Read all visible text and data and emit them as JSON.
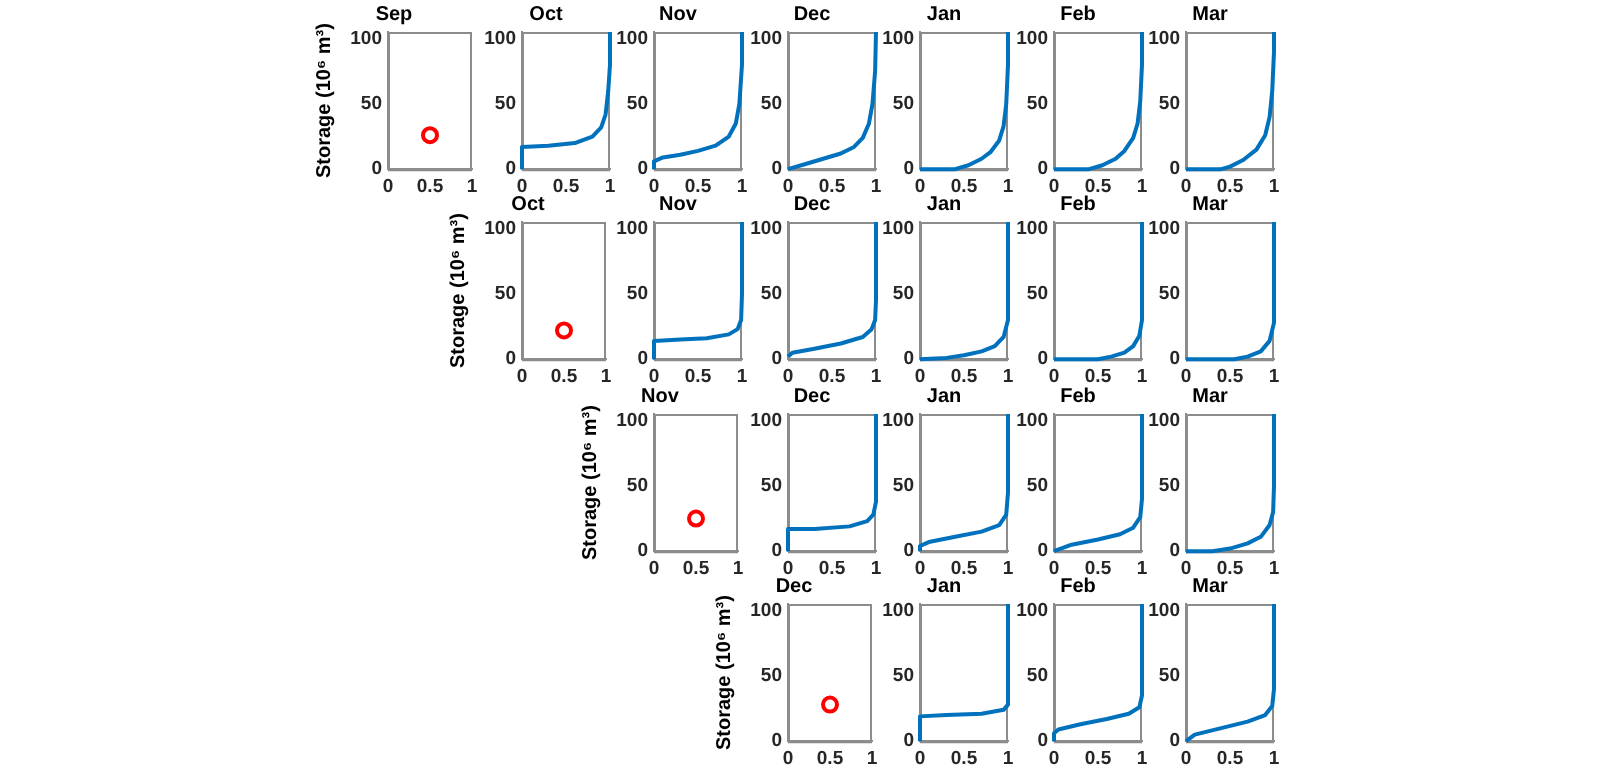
{
  "chart_data": [
    {
      "type": "scatter",
      "title": "Sep",
      "ylabel": "Storage (10⁶ m³)",
      "marker": "circle",
      "xlim": [
        0,
        1
      ],
      "xticks": [
        0,
        0.5,
        1
      ],
      "ylim": [
        0,
        105
      ],
      "yticks": [
        0,
        50,
        100
      ],
      "series": [
        {
          "color": "#ff0000",
          "x": [
            0.5
          ],
          "values": [
            26
          ]
        }
      ]
    },
    {
      "type": "line",
      "title": "Oct",
      "xlim": [
        0,
        1
      ],
      "xticks": [
        0,
        0.5,
        1
      ],
      "ylim": [
        0,
        105
      ],
      "yticks": [
        0,
        50,
        100
      ],
      "series": [
        {
          "color": "#0072bd",
          "x": [
            0,
            0,
            0.3,
            0.6,
            0.8,
            0.9,
            0.95,
            0.98,
            1,
            1
          ],
          "values": [
            0,
            17,
            18,
            20,
            25,
            32,
            42,
            60,
            80,
            105
          ]
        }
      ]
    },
    {
      "type": "line",
      "title": "Nov",
      "xlim": [
        0,
        1
      ],
      "xticks": [
        0,
        0.5,
        1
      ],
      "ylim": [
        0,
        105
      ],
      "yticks": [
        0,
        50,
        100
      ],
      "series": [
        {
          "color": "#0072bd",
          "x": [
            0,
            0,
            0.1,
            0.3,
            0.5,
            0.7,
            0.85,
            0.93,
            0.97,
            1,
            1
          ],
          "values": [
            0,
            6,
            9,
            11,
            14,
            18,
            25,
            35,
            50,
            80,
            105
          ]
        }
      ]
    },
    {
      "type": "line",
      "title": "Dec",
      "xlim": [
        0,
        1
      ],
      "xticks": [
        0,
        0.5,
        1
      ],
      "ylim": [
        0,
        105
      ],
      "yticks": [
        0,
        50,
        100
      ],
      "series": [
        {
          "color": "#0072bd",
          "x": [
            0,
            0.2,
            0.4,
            0.6,
            0.75,
            0.85,
            0.92,
            0.96,
            0.99,
            1
          ],
          "values": [
            0,
            4,
            8,
            12,
            17,
            24,
            35,
            50,
            75,
            105
          ]
        }
      ]
    },
    {
      "type": "line",
      "title": "Jan",
      "xlim": [
        0,
        1
      ],
      "xticks": [
        0,
        0.5,
        1
      ],
      "ylim": [
        0,
        105
      ],
      "yticks": [
        0,
        50,
        100
      ],
      "series": [
        {
          "color": "#0072bd",
          "x": [
            0,
            0.4,
            0.55,
            0.7,
            0.8,
            0.9,
            0.95,
            0.98,
            1,
            1
          ],
          "values": [
            0,
            0,
            3,
            8,
            13,
            22,
            33,
            50,
            80,
            105
          ]
        }
      ]
    },
    {
      "type": "line",
      "title": "Feb",
      "xlim": [
        0,
        1
      ],
      "xticks": [
        0,
        0.5,
        1
      ],
      "ylim": [
        0,
        105
      ],
      "yticks": [
        0,
        50,
        100
      ],
      "series": [
        {
          "color": "#0072bd",
          "x": [
            0,
            0.4,
            0.55,
            0.7,
            0.8,
            0.9,
            0.95,
            0.98,
            1,
            1
          ],
          "values": [
            0,
            0,
            3,
            8,
            14,
            24,
            35,
            52,
            80,
            105
          ]
        }
      ]
    },
    {
      "type": "line",
      "title": "Mar",
      "xlim": [
        0,
        1
      ],
      "xticks": [
        0,
        0.5,
        1
      ],
      "ylim": [
        0,
        105
      ],
      "yticks": [
        0,
        50,
        100
      ],
      "series": [
        {
          "color": "#0072bd",
          "x": [
            0,
            0.4,
            0.5,
            0.65,
            0.8,
            0.9,
            0.95,
            0.98,
            1,
            1
          ],
          "values": [
            0,
            0,
            2,
            7,
            15,
            26,
            40,
            60,
            90,
            105
          ]
        }
      ]
    },
    {
      "type": "scatter",
      "title": "Oct",
      "ylabel": "Storage (10⁶ m³)",
      "marker": "circle",
      "xlim": [
        0,
        1
      ],
      "xticks": [
        0,
        0.5,
        1
      ],
      "ylim": [
        0,
        105
      ],
      "yticks": [
        0,
        50,
        100
      ],
      "series": [
        {
          "color": "#ff0000",
          "x": [
            0.5
          ],
          "values": [
            22
          ]
        }
      ]
    },
    {
      "type": "line",
      "title": "Nov",
      "xlim": [
        0,
        1
      ],
      "xticks": [
        0,
        0.5,
        1
      ],
      "ylim": [
        0,
        105
      ],
      "yticks": [
        0,
        50,
        100
      ],
      "series": [
        {
          "color": "#0072bd",
          "x": [
            0,
            0,
            0.3,
            0.6,
            0.85,
            0.95,
            0.99,
            1,
            1
          ],
          "values": [
            0,
            14,
            15,
            16,
            19,
            23,
            30,
            50,
            105
          ]
        }
      ]
    },
    {
      "type": "line",
      "title": "Dec",
      "xlim": [
        0,
        1
      ],
      "xticks": [
        0,
        0.5,
        1
      ],
      "ylim": [
        0,
        105
      ],
      "yticks": [
        0,
        50,
        100
      ],
      "series": [
        {
          "color": "#0072bd",
          "x": [
            0,
            0.05,
            0.3,
            0.6,
            0.85,
            0.95,
            0.99,
            1,
            1
          ],
          "values": [
            2,
            5,
            8,
            12,
            17,
            23,
            30,
            45,
            105
          ]
        }
      ]
    },
    {
      "type": "line",
      "title": "Jan",
      "xlim": [
        0,
        1
      ],
      "xticks": [
        0,
        0.5,
        1
      ],
      "ylim": [
        0,
        105
      ],
      "yticks": [
        0,
        50,
        100
      ],
      "series": [
        {
          "color": "#0072bd",
          "x": [
            0,
            0.3,
            0.5,
            0.7,
            0.85,
            0.95,
            1,
            1
          ],
          "values": [
            0,
            1,
            3,
            6,
            10,
            17,
            30,
            105
          ]
        }
      ]
    },
    {
      "type": "line",
      "title": "Feb",
      "xlim": [
        0,
        1
      ],
      "xticks": [
        0,
        0.5,
        1
      ],
      "ylim": [
        0,
        105
      ],
      "yticks": [
        0,
        50,
        100
      ],
      "series": [
        {
          "color": "#0072bd",
          "x": [
            0,
            0.5,
            0.65,
            0.8,
            0.9,
            0.97,
            1,
            1
          ],
          "values": [
            0,
            0,
            2,
            5,
            10,
            18,
            30,
            105
          ]
        }
      ]
    },
    {
      "type": "line",
      "title": "Mar",
      "xlim": [
        0,
        1
      ],
      "xticks": [
        0,
        0.5,
        1
      ],
      "ylim": [
        0,
        105
      ],
      "yticks": [
        0,
        50,
        100
      ],
      "series": [
        {
          "color": "#0072bd",
          "x": [
            0,
            0.55,
            0.7,
            0.85,
            0.95,
            1,
            1
          ],
          "values": [
            0,
            0,
            2,
            6,
            14,
            28,
            105
          ]
        }
      ]
    },
    {
      "type": "scatter",
      "title": "Nov",
      "ylabel": "Storage (10⁶ m³)",
      "marker": "circle",
      "xlim": [
        0,
        1
      ],
      "xticks": [
        0,
        0.5,
        1
      ],
      "ylim": [
        0,
        105
      ],
      "yticks": [
        0,
        50,
        100
      ],
      "series": [
        {
          "color": "#ff0000",
          "x": [
            0.5
          ],
          "values": [
            25
          ]
        }
      ]
    },
    {
      "type": "line",
      "title": "Dec",
      "xlim": [
        0,
        1
      ],
      "xticks": [
        0,
        0.5,
        1
      ],
      "ylim": [
        0,
        105
      ],
      "yticks": [
        0,
        50,
        100
      ],
      "series": [
        {
          "color": "#0072bd",
          "x": [
            0,
            0,
            0.3,
            0.7,
            0.9,
            0.97,
            1,
            1
          ],
          "values": [
            0,
            17,
            17,
            19,
            23,
            28,
            38,
            105
          ]
        }
      ]
    },
    {
      "type": "line",
      "title": "Jan",
      "xlim": [
        0,
        1
      ],
      "xticks": [
        0,
        0.5,
        1
      ],
      "ylim": [
        0,
        105
      ],
      "yticks": [
        0,
        50,
        100
      ],
      "series": [
        {
          "color": "#0072bd",
          "x": [
            0,
            0,
            0.1,
            0.4,
            0.7,
            0.9,
            0.98,
            1,
            1
          ],
          "values": [
            0,
            4,
            7,
            11,
            15,
            20,
            28,
            45,
            105
          ]
        }
      ]
    },
    {
      "type": "line",
      "title": "Feb",
      "xlim": [
        0,
        1
      ],
      "xticks": [
        0,
        0.5,
        1
      ],
      "ylim": [
        0,
        105
      ],
      "yticks": [
        0,
        50,
        100
      ],
      "series": [
        {
          "color": "#0072bd",
          "x": [
            0,
            0.2,
            0.5,
            0.75,
            0.9,
            0.98,
            1,
            1
          ],
          "values": [
            0,
            5,
            9,
            13,
            18,
            26,
            40,
            105
          ]
        }
      ]
    },
    {
      "type": "line",
      "title": "Mar",
      "xlim": [
        0,
        1
      ],
      "xticks": [
        0,
        0.5,
        1
      ],
      "ylim": [
        0,
        105
      ],
      "yticks": [
        0,
        50,
        100
      ],
      "series": [
        {
          "color": "#0072bd",
          "x": [
            0,
            0.3,
            0.5,
            0.7,
            0.85,
            0.95,
            0.99,
            1,
            1
          ],
          "values": [
            0,
            0,
            2,
            6,
            11,
            20,
            30,
            50,
            105
          ]
        }
      ]
    },
    {
      "type": "scatter",
      "title": "Dec",
      "ylabel": "Storage (10⁶ m³)",
      "marker": "circle",
      "xlim": [
        0,
        1
      ],
      "xticks": [
        0,
        0.5,
        1
      ],
      "ylim": [
        0,
        105
      ],
      "yticks": [
        0,
        50,
        100
      ],
      "series": [
        {
          "color": "#ff0000",
          "x": [
            0.5
          ],
          "values": [
            28
          ]
        }
      ]
    },
    {
      "type": "line",
      "title": "Jan",
      "xlim": [
        0,
        1
      ],
      "xticks": [
        0,
        0.5,
        1
      ],
      "ylim": [
        0,
        105
      ],
      "yticks": [
        0,
        50,
        100
      ],
      "series": [
        {
          "color": "#0072bd",
          "x": [
            0,
            0,
            0.3,
            0.7,
            0.95,
            1,
            1
          ],
          "values": [
            0,
            19,
            20,
            21,
            24,
            28,
            105
          ]
        }
      ]
    },
    {
      "type": "line",
      "title": "Feb",
      "xlim": [
        0,
        1
      ],
      "xticks": [
        0,
        0.5,
        1
      ],
      "ylim": [
        0,
        105
      ],
      "yticks": [
        0,
        50,
        100
      ],
      "series": [
        {
          "color": "#0072bd",
          "x": [
            0,
            0,
            0.05,
            0.3,
            0.6,
            0.85,
            0.97,
            1,
            1
          ],
          "values": [
            0,
            6,
            9,
            13,
            17,
            21,
            26,
            35,
            105
          ]
        }
      ]
    },
    {
      "type": "line",
      "title": "Mar",
      "xlim": [
        0,
        1
      ],
      "xticks": [
        0,
        0.5,
        1
      ],
      "ylim": [
        0,
        105
      ],
      "yticks": [
        0,
        50,
        100
      ],
      "series": [
        {
          "color": "#0072bd",
          "x": [
            0,
            0.1,
            0.4,
            0.7,
            0.9,
            0.98,
            1,
            1
          ],
          "values": [
            0,
            5,
            10,
            15,
            20,
            27,
            40,
            105
          ]
        }
      ]
    }
  ]
}
